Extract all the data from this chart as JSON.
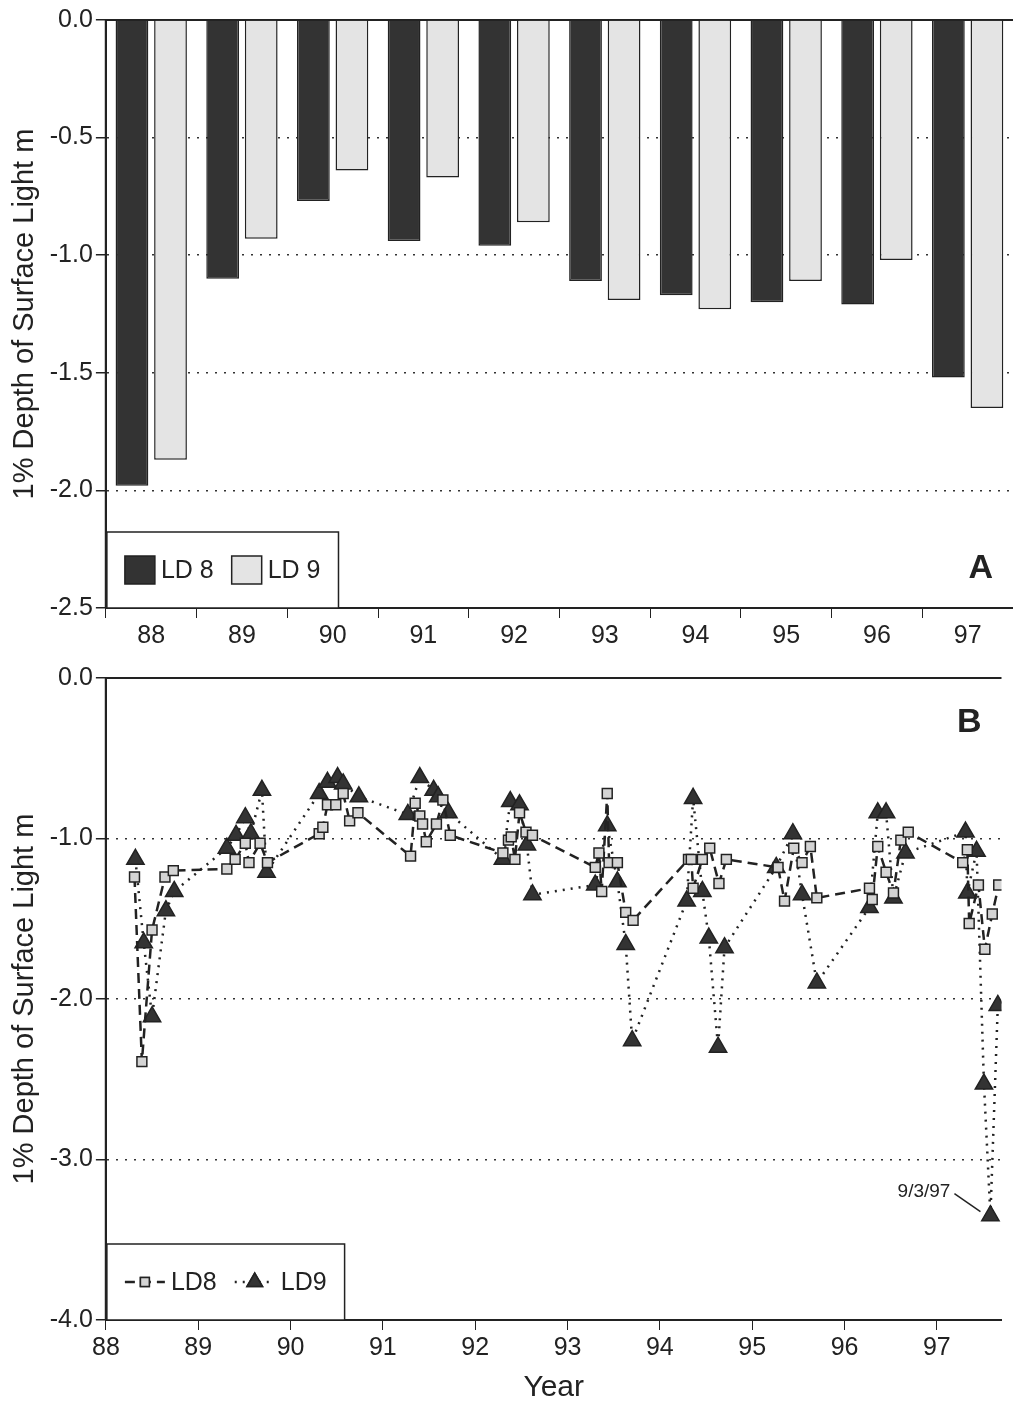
{
  "chart_data": [
    {
      "type": "bar",
      "ylabel": "1% Depth of Surface Light m",
      "categories": [
        "88",
        "89",
        "90",
        "91",
        "92",
        "93",
        "94",
        "95",
        "96",
        "97"
      ],
      "series": [
        {
          "name": "LD 8",
          "color": "#333333",
          "values": [
            -1.98,
            -1.1,
            -0.77,
            -0.94,
            -0.96,
            -1.11,
            -1.17,
            -1.2,
            -1.21,
            -1.52
          ]
        },
        {
          "name": "LD 9",
          "color": "#e4e4e4",
          "values": [
            -1.87,
            -0.93,
            -0.64,
            -0.67,
            -0.86,
            -1.19,
            -1.23,
            -1.11,
            -1.02,
            -1.65
          ]
        }
      ],
      "ylim": [
        -2.5,
        0
      ],
      "yticks": [
        {
          "value": 0,
          "label": "0.0"
        },
        -0.5,
        {
          "value": -1,
          "label": "-1.0"
        },
        -1.5,
        {
          "value": -2,
          "label": "-2.0"
        },
        -2.5
      ],
      "grid": "y",
      "legend": "bottom left",
      "annotations": [
        "A"
      ]
    },
    {
      "type": "line",
      "xlabel": "Year",
      "ylabel": "1% Depth of Surface Light m",
      "series": [
        {
          "name": "LD8",
          "color": "#d4d4d4",
          "marker": "square",
          "line_style": "dashed",
          "x": [
            88.31,
            88.39,
            88.5,
            88.64,
            88.73,
            89.31,
            89.4,
            89.51,
            89.55,
            89.67,
            89.75,
            90.31,
            90.35,
            90.4,
            90.49,
            90.57,
            90.64,
            90.73,
            91.3,
            91.35,
            91.4,
            91.43,
            91.47,
            91.58,
            91.65,
            91.73,
            92.3,
            92.36,
            92.39,
            92.43,
            92.48,
            92.55,
            92.62,
            93.3,
            93.34,
            93.37,
            93.43,
            93.45,
            93.54,
            93.63,
            93.71,
            94.31,
            94.34,
            94.36,
            94.46,
            94.54,
            94.64,
            94.72,
            95.28,
            95.35,
            95.45,
            95.54,
            95.63,
            95.7,
            96.27,
            96.3,
            96.36,
            96.45,
            96.53,
            96.61,
            96.69,
            97.28,
            97.33,
            97.35,
            97.45,
            97.52,
            97.6,
            97.67
          ],
          "values": [
            -1.24,
            -2.39,
            -1.57,
            -1.24,
            -1.2,
            -1.19,
            -1.13,
            -1.03,
            -1.15,
            -1.03,
            -1.15,
            -0.97,
            -0.93,
            -0.79,
            -0.79,
            -0.72,
            -0.89,
            -0.84,
            -1.11,
            -0.78,
            -0.86,
            -0.91,
            -1.02,
            -0.91,
            -0.76,
            -0.98,
            -1.09,
            -1.01,
            -0.99,
            -1.13,
            -0.84,
            -0.96,
            -0.98,
            -1.18,
            -1.09,
            -1.33,
            -0.72,
            -1.15,
            -1.15,
            -1.46,
            -1.51,
            -1.13,
            -1.13,
            -1.31,
            -1.13,
            -1.06,
            -1.28,
            -1.13,
            -1.18,
            -1.39,
            -1.06,
            -1.15,
            -1.05,
            -1.37,
            -1.31,
            -1.38,
            -1.05,
            -1.21,
            -1.34,
            -1.01,
            -0.96,
            -1.15,
            -1.07,
            -1.53,
            -1.29,
            -1.69,
            -1.47,
            -1.29
          ]
        },
        {
          "name": "LD9",
          "color": "#333333",
          "marker": "triangle",
          "line_style": "dotted",
          "x": [
            88.32,
            88.41,
            88.5,
            88.65,
            88.74,
            89.31,
            89.41,
            89.51,
            89.57,
            89.69,
            89.74,
            90.31,
            90.4,
            90.51,
            90.57,
            90.74,
            91.27,
            91.4,
            91.55,
            91.6,
            91.71,
            92.3,
            92.38,
            92.48,
            92.56,
            92.62,
            93.3,
            93.43,
            93.54,
            93.63,
            93.7,
            94.29,
            94.36,
            94.46,
            94.53,
            94.63,
            94.7,
            95.26,
            95.44,
            95.54,
            95.7,
            96.27,
            96.36,
            96.45,
            96.53,
            96.66,
            97.31,
            97.33,
            97.43,
            97.51,
            97.58,
            97.66
          ],
          "values": [
            -1.13,
            -1.65,
            -2.11,
            -1.45,
            -1.33,
            -1.06,
            -0.98,
            -0.87,
            -0.97,
            -0.7,
            -1.21,
            -0.72,
            -0.65,
            -0.62,
            -0.66,
            -0.74,
            -0.85,
            -0.62,
            -0.7,
            -0.74,
            -0.84,
            -1.13,
            -0.77,
            -0.79,
            -1.04,
            -1.35,
            -1.29,
            -0.92,
            -1.27,
            -1.66,
            -2.26,
            -1.39,
            -0.75,
            -1.33,
            -1.62,
            -2.3,
            -1.68,
            -1.18,
            -0.97,
            -1.35,
            -1.9,
            -1.43,
            -0.84,
            -0.84,
            -1.37,
            -1.09,
            -0.96,
            -1.34,
            -1.08,
            -2.53,
            -3.35,
            -2.04
          ]
        }
      ],
      "xlim": [
        88,
        97.7
      ],
      "xticks": [
        88,
        89,
        90,
        91,
        92,
        93,
        94,
        95,
        96,
        97
      ],
      "ylim": [
        -4,
        0
      ],
      "yticks": [
        {
          "value": 0,
          "label": "0.0"
        },
        {
          "value": -1,
          "label": "-1.0"
        },
        {
          "value": -2,
          "label": "-2.0"
        },
        {
          "value": -3,
          "label": "-3.0"
        },
        {
          "value": -4,
          "label": "-4.0"
        }
      ],
      "grid": "y",
      "legend": "bottom left",
      "annotations": [
        "B",
        {
          "text": "9/3/97",
          "x": 97.58,
          "y": -3.35
        }
      ]
    }
  ]
}
